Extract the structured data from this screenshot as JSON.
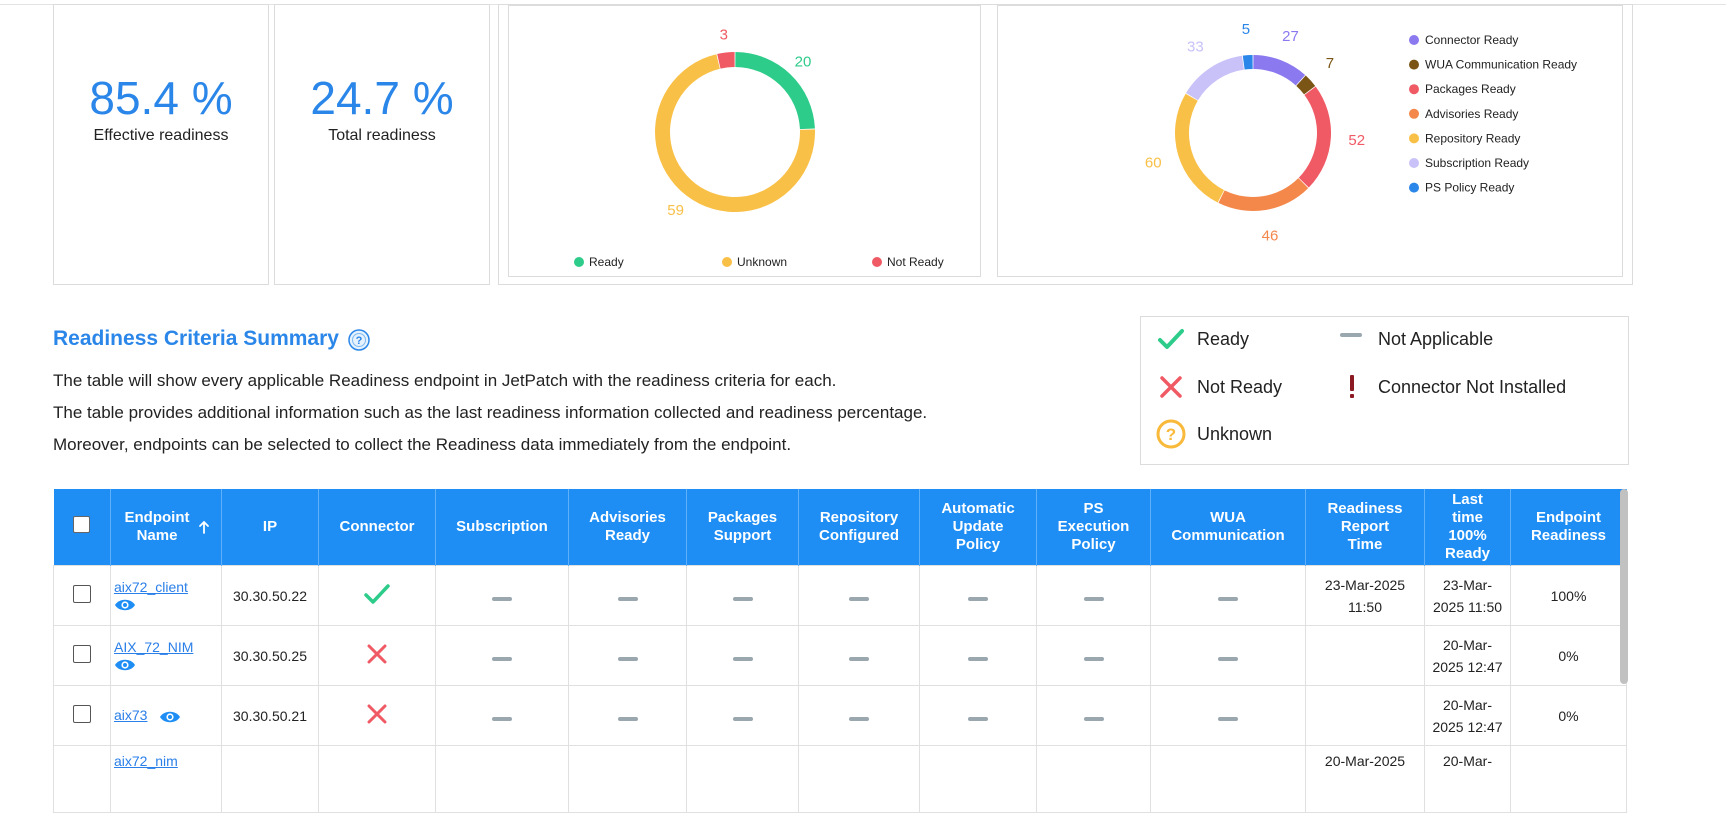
{
  "kpis": [
    {
      "value": "85.4 %",
      "label": "Effective readiness"
    },
    {
      "value": "24.7 %",
      "label": "Total readiness"
    }
  ],
  "colors": {
    "accent": "#2a86e8",
    "header_bg": "#1e8ef5",
    "ready": "#2ecc8a",
    "not_ready": "#f05a65",
    "unknown": "#f9c047"
  },
  "chart_data": [
    {
      "type": "pie",
      "variant": "donut",
      "categories": [
        "Ready",
        "Unknown",
        "Not Ready"
      ],
      "values": [
        20,
        59,
        3
      ],
      "colors": [
        "#2ecc8a",
        "#f9c047",
        "#f05a65"
      ],
      "legend": [
        "Ready",
        "Unknown",
        "Not Ready"
      ],
      "legend_position": "bottom"
    },
    {
      "type": "pie",
      "variant": "donut",
      "categories": [
        "Connector Ready",
        "WUA Communication Ready",
        "Packages Ready",
        "Advisories Ready",
        "Repository Ready",
        "Subscription Ready",
        "PS Policy Ready"
      ],
      "values": [
        27,
        7,
        52,
        46,
        60,
        33,
        5
      ],
      "colors": [
        "#8b79f0",
        "#7a5515",
        "#f05a65",
        "#f4884b",
        "#f9c047",
        "#c8c2f8",
        "#2a86e8"
      ],
      "legend": [
        "Connector Ready",
        "WUA Communication Ready",
        "Packages Ready",
        "Advisories Ready",
        "Repository Ready",
        "Subscription Ready",
        "PS Policy Ready"
      ],
      "legend_position": "right"
    }
  ],
  "section": {
    "title": "Readiness Criteria Summary",
    "help_icon": "question-circle-icon",
    "lines": [
      "The table will show every applicable Readiness endpoint in JetPatch with the readiness criteria for each.",
      "The table provides additional information such as the last readiness information collected and readiness percentage.",
      "Moreover, endpoints can be selected to collect the Readiness data immediately from the endpoint."
    ]
  },
  "status_legend": [
    {
      "icon": "check-icon",
      "label": "Ready"
    },
    {
      "icon": "dash-icon",
      "label": "Not Applicable"
    },
    {
      "icon": "x-icon",
      "label": "Not Ready"
    },
    {
      "icon": "exclamation-icon",
      "label": "Connector Not Installed"
    },
    {
      "icon": "question-circle-icon",
      "label": "Unknown"
    }
  ],
  "table": {
    "columns": [
      "",
      "Endpoint Name",
      "IP",
      "Connector",
      "Subscription",
      "Advisories Ready",
      "Packages Support",
      "Repository Configured",
      "Automatic Update Policy",
      "PS Execution Policy",
      "WUA Communication",
      "Readiness Report Time",
      "Last time 100% Ready",
      "Endpoint Readiness"
    ],
    "sort_icon": "arrow-up-icon",
    "rows": [
      {
        "name": "aix72_client",
        "ip": "30.30.50.22",
        "connector": "ready",
        "report_time": "23-Mar-2025 11:50",
        "last_ready": "23-Mar-2025 11:50",
        "readiness": "100%"
      },
      {
        "name": "AIX_72_NIM",
        "ip": "30.30.50.25",
        "connector": "not_ready",
        "report_time": "",
        "last_ready": "20-Mar-2025 12:47",
        "readiness": "0%"
      },
      {
        "name": "aix73",
        "ip": "30.30.50.21",
        "connector": "not_ready",
        "report_time": "",
        "last_ready": "20-Mar-2025 12:47",
        "readiness": "0%"
      }
    ],
    "partial_row": {
      "name": "aix72_nim",
      "report_time": "20-Mar-2025",
      "last_ready": "20-Mar-"
    }
  }
}
